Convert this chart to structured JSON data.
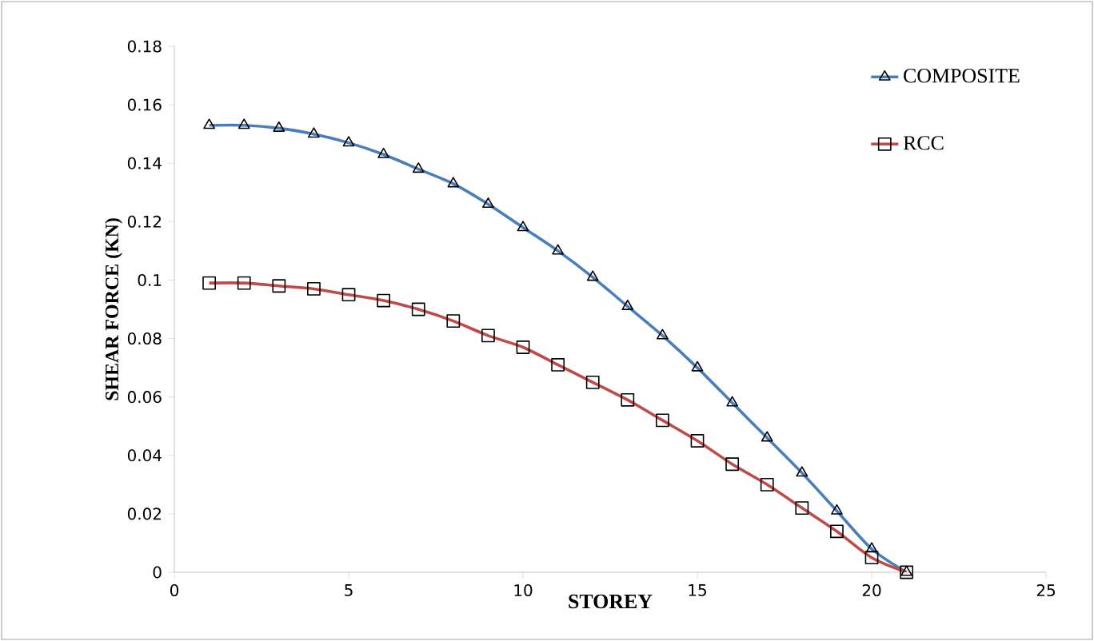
{
  "chart_data": {
    "type": "line",
    "xlabel": "STOREY",
    "ylabel": "SHEAR FORCE (KN)",
    "x": [
      1,
      2,
      3,
      4,
      5,
      6,
      7,
      8,
      9,
      10,
      11,
      12,
      13,
      14,
      15,
      16,
      17,
      18,
      19,
      20,
      21
    ],
    "series": [
      {
        "name": "COMPOSITE",
        "color": "#4a7ebb",
        "marker": "triangle",
        "values": [
          0.153,
          0.153,
          0.152,
          0.15,
          0.147,
          0.143,
          0.138,
          0.133,
          0.126,
          0.118,
          0.11,
          0.101,
          0.091,
          0.081,
          0.07,
          0.058,
          0.046,
          0.034,
          0.021,
          0.008,
          0
        ]
      },
      {
        "name": "RCC",
        "color": "#be4b48",
        "marker": "square",
        "values": [
          0.099,
          0.099,
          0.098,
          0.097,
          0.095,
          0.093,
          0.09,
          0.086,
          0.081,
          0.077,
          0.071,
          0.065,
          0.059,
          0.052,
          0.045,
          0.037,
          0.03,
          0.022,
          0.014,
          0.005,
          0
        ]
      }
    ],
    "xlim": [
      0,
      25
    ],
    "xticks": [
      0,
      5,
      10,
      15,
      20,
      25
    ],
    "ylim": [
      0,
      0.18
    ],
    "yticks": [
      0,
      0.02,
      0.04,
      0.06,
      0.08,
      0.1,
      0.12,
      0.14,
      0.16,
      0.18
    ],
    "grid": false,
    "legend": "top right",
    "line_style": "solid"
  }
}
